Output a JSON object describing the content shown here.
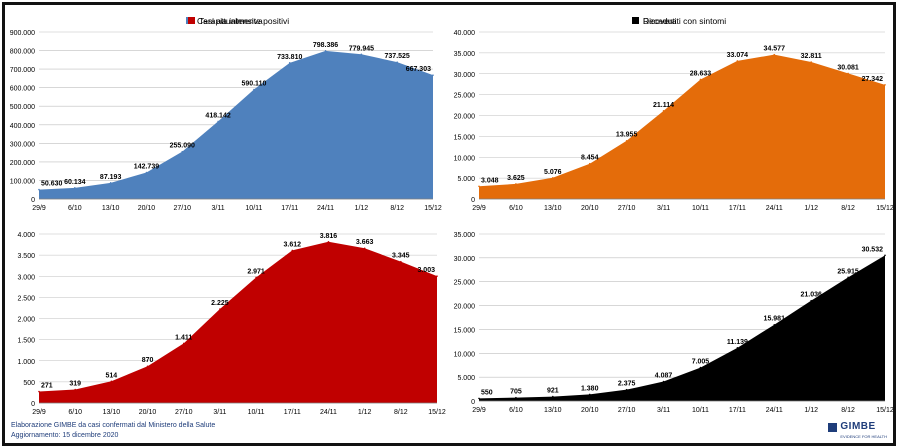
{
  "chart_data": [
    {
      "type": "area",
      "title": "Casi attualmente positivi",
      "color": "#4f81bd",
      "categories": [
        "29/9",
        "6/10",
        "13/10",
        "20/10",
        "27/10",
        "3/11",
        "10/11",
        "17/11",
        "24/11",
        "1/12",
        "8/12",
        "15/12"
      ],
      "values": [
        50630,
        60134,
        87193,
        142739,
        255090,
        418142,
        590110,
        733810,
        798386,
        779945,
        737525,
        667303
      ],
      "value_labels": [
        "50.630",
        "60.134",
        "87.193",
        "142.739",
        "255.090",
        "418.142",
        "590.110",
        "733.810",
        "798.386",
        "779.945",
        "737.525",
        "667.303"
      ],
      "ylim": [
        0,
        900000
      ],
      "yticks": [
        0,
        100000,
        200000,
        300000,
        400000,
        500000,
        600000,
        700000,
        800000,
        900000
      ],
      "ytick_labels": [
        "0",
        "100.000",
        "200.000",
        "300.000",
        "400.000",
        "500.000",
        "600.000",
        "700.000",
        "800.000",
        "900.000"
      ],
      "grid": true,
      "legend": "top"
    },
    {
      "type": "area",
      "title": "Ricoverati con sintomi",
      "color": "#e46c0a",
      "categories": [
        "29/9",
        "6/10",
        "13/10",
        "20/10",
        "27/10",
        "3/11",
        "10/11",
        "17/11",
        "24/11",
        "1/12",
        "8/12",
        "15/12"
      ],
      "values": [
        3048,
        3625,
        5076,
        8454,
        13955,
        21114,
        28633,
        33074,
        34577,
        32811,
        30081,
        27342
      ],
      "value_labels": [
        "3.048",
        "3.625",
        "5.076",
        "8.454",
        "13.955",
        "21.114",
        "28.633",
        "33.074",
        "34.577",
        "32.811",
        "30.081",
        "27.342"
      ],
      "ylim": [
        0,
        40000
      ],
      "yticks": [
        0,
        5000,
        10000,
        15000,
        20000,
        25000,
        30000,
        35000,
        40000
      ],
      "ytick_labels": [
        "0",
        "5.000",
        "10.000",
        "15.000",
        "20.000",
        "25.000",
        "30.000",
        "35.000",
        "40.000"
      ],
      "grid": true,
      "legend": "top"
    },
    {
      "type": "area",
      "title": "Terapia intensiva",
      "color": "#c00000",
      "categories": [
        "29/9",
        "6/10",
        "13/10",
        "20/10",
        "27/10",
        "3/11",
        "10/11",
        "17/11",
        "24/11",
        "1/12",
        "8/12",
        "15/12"
      ],
      "values": [
        271,
        319,
        514,
        870,
        1411,
        2225,
        2971,
        3612,
        3816,
        3663,
        3345,
        3003
      ],
      "value_labels": [
        "271",
        "319",
        "514",
        "870",
        "1.411",
        "2.225",
        "2.971",
        "3.612",
        "3.816",
        "3.663",
        "3.345",
        "3.003"
      ],
      "ylim": [
        0,
        4000
      ],
      "yticks": [
        0,
        500,
        1000,
        1500,
        2000,
        2500,
        3000,
        3500,
        4000
      ],
      "ytick_labels": [
        "0",
        "500",
        "1.000",
        "1.500",
        "2.000",
        "2.500",
        "3.000",
        "3.500",
        "4.000"
      ],
      "grid": true,
      "legend": "top"
    },
    {
      "type": "area",
      "title": "Deceduti",
      "color": "#000000",
      "categories": [
        "29/9",
        "6/10",
        "13/10",
        "20/10",
        "27/10",
        "3/11",
        "10/11",
        "17/11",
        "24/11",
        "1/12",
        "8/12",
        "15/12"
      ],
      "values": [
        550,
        705,
        921,
        1380,
        2375,
        4087,
        7005,
        11139,
        15981,
        21036,
        25915,
        30532
      ],
      "value_labels": [
        "550",
        "705",
        "921",
        "1.380",
        "2.375",
        "4.087",
        "7.005",
        "11.139",
        "15.981",
        "21.036",
        "25.915",
        "30.532"
      ],
      "ylim": [
        0,
        35000
      ],
      "yticks": [
        0,
        5000,
        10000,
        15000,
        20000,
        25000,
        30000,
        35000
      ],
      "ytick_labels": [
        "0",
        "5.000",
        "10.000",
        "15.000",
        "20.000",
        "25.000",
        "30.000",
        "35.000"
      ],
      "grid": true,
      "legend": "top"
    }
  ],
  "footer": {
    "line1": "Elaborazione GIMBE da casi confermati dal Ministero della Salute",
    "line2": "Aggiornamento: 15 dicembre 2020"
  },
  "logo": {
    "text": "GIMBE",
    "subtext": "EVIDENCE FOR HEALTH"
  }
}
